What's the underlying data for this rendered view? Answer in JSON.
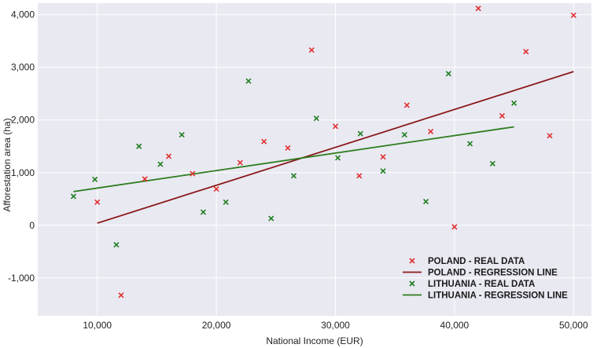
{
  "chart_data": {
    "type": "scatter",
    "xlabel": "National Income (EUR)",
    "ylabel": "Afforestation area (ha)",
    "xlim": [
      5000,
      51500
    ],
    "ylim": [
      -1720,
      4220
    ],
    "x_ticks": [
      10000,
      20000,
      30000,
      40000,
      50000
    ],
    "x_tick_labels": [
      "10,000",
      "20,000",
      "30,000",
      "40,000",
      "50,000"
    ],
    "y_ticks": [
      -1000,
      0,
      1000,
      2000,
      3000,
      4000
    ],
    "y_tick_labels": [
      "-1,000",
      "0",
      "1,000",
      "2,000",
      "3,000",
      "4,000"
    ],
    "grid": true,
    "legend_position": "bottom-right",
    "colors": {
      "poland_points": "#e03030",
      "poland_line": "#8b1a1a",
      "lithuania_points": "#1e7e1e",
      "lithuania_line": "#2e7d1e",
      "plot_background": "#e9e9f2",
      "grid": "#ffffff"
    },
    "series": [
      {
        "name": "POLAND - REAL DATA",
        "kind": "scatter",
        "marker": "x",
        "color": "#e03030",
        "points": [
          [
            10000,
            440
          ],
          [
            12000,
            -1330
          ],
          [
            14000,
            880
          ],
          [
            16000,
            1310
          ],
          [
            18000,
            980
          ],
          [
            20000,
            690
          ],
          [
            22000,
            1190
          ],
          [
            24000,
            1590
          ],
          [
            26000,
            1470
          ],
          [
            28000,
            3330
          ],
          [
            30000,
            1880
          ],
          [
            32000,
            940
          ],
          [
            34000,
            1300
          ],
          [
            36000,
            2280
          ],
          [
            38000,
            1780
          ],
          [
            40000,
            -30
          ],
          [
            42000,
            4120
          ],
          [
            44000,
            2080
          ],
          [
            46000,
            3300
          ],
          [
            48000,
            1700
          ],
          [
            50000,
            3990
          ]
        ]
      },
      {
        "name": "POLAND - REGRESSION LINE",
        "kind": "line",
        "color": "#8b1a1a",
        "points": [
          [
            10000,
            40
          ],
          [
            50000,
            2920
          ]
        ]
      },
      {
        "name": "LITHUANIA - REAL DATA",
        "kind": "scatter",
        "marker": "x",
        "color": "#1e7e1e",
        "points": [
          [
            8000,
            550
          ],
          [
            9800,
            870
          ],
          [
            11600,
            -370
          ],
          [
            13500,
            1500
          ],
          [
            15300,
            1160
          ],
          [
            17100,
            1720
          ],
          [
            18900,
            250
          ],
          [
            20800,
            440
          ],
          [
            22700,
            2740
          ],
          [
            24600,
            130
          ],
          [
            26500,
            940
          ],
          [
            28400,
            2030
          ],
          [
            30200,
            1280
          ],
          [
            32100,
            1740
          ],
          [
            34000,
            1030
          ],
          [
            35800,
            1720
          ],
          [
            37600,
            450
          ],
          [
            39500,
            2880
          ],
          [
            41300,
            1550
          ],
          [
            43200,
            1170
          ],
          [
            45000,
            2320
          ]
        ]
      },
      {
        "name": "LITHUANIA - REGRESSION LINE",
        "kind": "line",
        "color": "#2e7d1e",
        "points": [
          [
            8000,
            640
          ],
          [
            45000,
            1870
          ]
        ]
      }
    ]
  }
}
